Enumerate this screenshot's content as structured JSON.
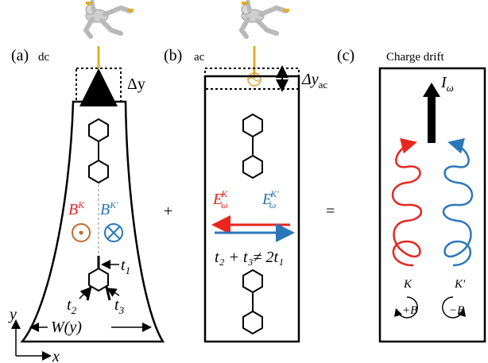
{
  "panels": {
    "a": {
      "tag": "(a)",
      "mode": "dc",
      "dy": "Δy",
      "width": "W(y)"
    },
    "b": {
      "tag": "(b)",
      "mode": "ac",
      "dy": "Δy",
      "dy_sub": "ac",
      "condition": "t₂ + t₃≠ 2t₁"
    },
    "c": {
      "tag": "(c)",
      "title": "Charge drift",
      "current": "I",
      "current_sub": "ω"
    }
  },
  "operators": {
    "plus": "+",
    "equals": "="
  },
  "fields": {
    "B": "B",
    "K": "K",
    "Kp": "K′",
    "E": "E",
    "omega": "ω"
  },
  "hoppings": {
    "t1": "t",
    "t1_sub": "1",
    "t2": "t",
    "t2_sub": "2",
    "t3": "t",
    "t3_sub": "3"
  },
  "valleys": {
    "K": "K",
    "Kp": "K′",
    "plusB": "+B",
    "minusB": "−B"
  },
  "axes": {
    "x": "x",
    "y": "y"
  },
  "colors": {
    "red": "#e8251f",
    "blue": "#2a77b8",
    "orange": "#c8672c"
  }
}
